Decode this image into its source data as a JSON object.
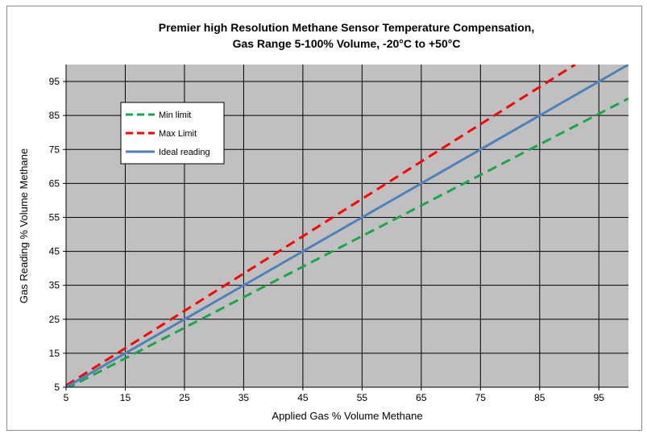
{
  "chart_data": {
    "type": "line",
    "title": "Premier high Resolution Methane Sensor Temperature Compensation,",
    "subtitle": "Gas Range 5-100% Volume, -20°C to +50°C",
    "xlabel": "Applied Gas % Volume Methane",
    "ylabel": "Gas Reading % Volume Methane",
    "xlim": [
      5,
      100
    ],
    "ylim": [
      5,
      100
    ],
    "xticks": [
      "5",
      "15",
      "25",
      "35",
      "45",
      "55",
      "65",
      "75",
      "85",
      "95"
    ],
    "yticks": [
      "5",
      "15",
      "25",
      "35",
      "45",
      "55",
      "65",
      "75",
      "85",
      "95"
    ],
    "grid": true,
    "legend_position": "top-left",
    "background": "#c0c0c0",
    "series": [
      {
        "name": "Min limit",
        "color": "#1aa64a",
        "style": "dashed",
        "x": [
          5,
          100
        ],
        "y": [
          4.5,
          90
        ]
      },
      {
        "name": "Max Limit",
        "color": "#ff0000",
        "style": "dashed",
        "x": [
          5,
          91
        ],
        "y": [
          5.5,
          100
        ]
      },
      {
        "name": "Ideal reading",
        "color": "#4f81bd",
        "style": "solid",
        "x": [
          5,
          100
        ],
        "y": [
          5,
          100
        ]
      }
    ]
  }
}
